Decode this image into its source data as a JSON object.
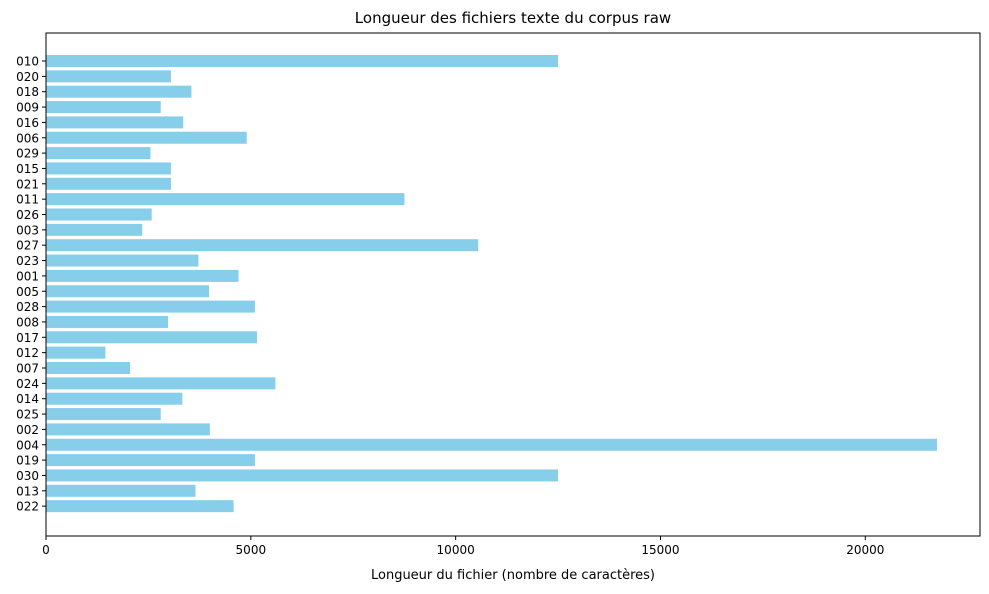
{
  "chart_data": {
    "type": "bar",
    "orientation": "horizontal",
    "title": "Longueur des fichiers texte du corpus raw",
    "xlabel": "Longueur du fichier (nombre de caractères)",
    "ylabel": "",
    "categories": [
      "010",
      "020",
      "018",
      "009",
      "016",
      "006",
      "029",
      "015",
      "021",
      "011",
      "026",
      "003",
      "027",
      "023",
      "001",
      "005",
      "028",
      "008",
      "017",
      "012",
      "007",
      "024",
      "014",
      "025",
      "002",
      "004",
      "019",
      "030",
      "013",
      "022"
    ],
    "values": [
      12500,
      3050,
      3550,
      2800,
      3350,
      4900,
      2550,
      3050,
      3050,
      8750,
      2580,
      2350,
      10550,
      3720,
      4700,
      3980,
      5100,
      2980,
      5150,
      1450,
      2050,
      5600,
      3330,
      2800,
      4000,
      21750,
      5100,
      12500,
      3650,
      4580
    ],
    "xlim": [
      0,
      22800
    ],
    "xticks": [
      0,
      5000,
      10000,
      15000,
      20000
    ],
    "xtick_labels": [
      "0",
      "5000",
      "10000",
      "15000",
      "20000"
    ],
    "bar_color": "#87ceeb",
    "grid": false,
    "legend": "none"
  }
}
